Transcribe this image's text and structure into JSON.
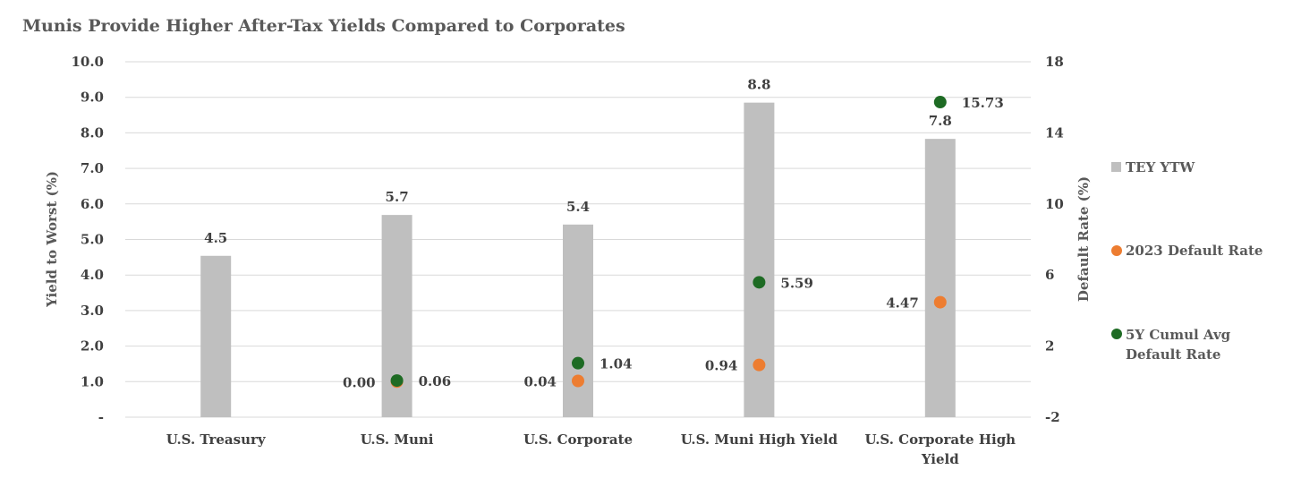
{
  "chart_data": {
    "type": "bar",
    "title": "Munis Provide Higher After-Tax Yields Compared to Corporates",
    "categories": [
      [
        "U.S. Treasury"
      ],
      [
        "U.S. Muni"
      ],
      [
        "U.S. Corporate"
      ],
      [
        "U.S. Muni High Yield"
      ],
      [
        "U.S. Corporate High",
        "Yield"
      ]
    ],
    "ylabel": "Yield to Worst (%)",
    "y2label": "Default Rate (%)",
    "ylim": [
      0,
      10
    ],
    "y2lim": [
      -2,
      18
    ],
    "yticks": [
      "-",
      "1.0",
      "2.0",
      "3.0",
      "4.0",
      "5.0",
      "6.0",
      "7.0",
      "8.0",
      "9.0",
      "10.0"
    ],
    "y2ticks": [
      "-2",
      "2",
      "6",
      "10",
      "14",
      "18"
    ],
    "grid": true,
    "legend_position": "right",
    "series": [
      {
        "name": "TEY YTW",
        "kind": "bar",
        "axis": "left",
        "color": "#bfbfbf",
        "values": [
          4.54,
          5.69,
          5.42,
          8.85,
          7.83
        ],
        "labels": [
          "4.5",
          "5.7",
          "5.4",
          "8.8",
          "7.8"
        ]
      },
      {
        "name": "2023 Default Rate",
        "kind": "scatter",
        "axis": "right",
        "color": "#ed7d31",
        "values": [
          null,
          0.0,
          0.04,
          0.94,
          4.47
        ],
        "labels": [
          null,
          "0.00",
          "0.04",
          "0.94",
          "4.47"
        ]
      },
      {
        "name": [
          "5Y Cumul Avg",
          "Default Rate"
        ],
        "kind": "scatter",
        "axis": "right",
        "color": "#1e6b24",
        "values": [
          null,
          0.06,
          1.04,
          5.59,
          15.73
        ],
        "labels": [
          null,
          "0.06",
          "1.04",
          "5.59",
          "15.73"
        ]
      }
    ]
  }
}
